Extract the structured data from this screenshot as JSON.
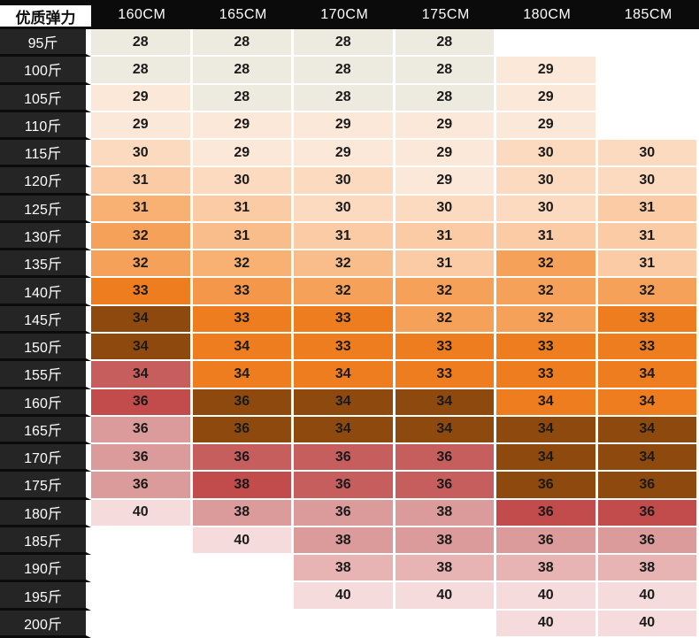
{
  "chart_data": {
    "type": "heatmap",
    "title": "优质弹力",
    "columns": [
      "160CM",
      "165CM",
      "170CM",
      "175CM",
      "180CM",
      "185CM"
    ],
    "rows": [
      "95斤",
      "100斤",
      "105斤",
      "110斤",
      "115斤",
      "120斤",
      "125斤",
      "130斤",
      "135斤",
      "140斤",
      "145斤",
      "150斤",
      "155斤",
      "160斤",
      "165斤",
      "170斤",
      "175斤",
      "180斤",
      "185斤",
      "190斤",
      "195斤",
      "200斤"
    ],
    "values": [
      [
        28,
        28,
        28,
        28,
        null,
        null
      ],
      [
        28,
        28,
        28,
        28,
        29,
        null
      ],
      [
        29,
        28,
        28,
        28,
        29,
        null
      ],
      [
        29,
        29,
        29,
        29,
        29,
        null
      ],
      [
        30,
        29,
        29,
        29,
        30,
        30
      ],
      [
        31,
        30,
        30,
        29,
        30,
        30
      ],
      [
        31,
        31,
        30,
        30,
        30,
        31
      ],
      [
        32,
        31,
        31,
        31,
        31,
        31
      ],
      [
        32,
        32,
        32,
        31,
        32,
        31
      ],
      [
        33,
        33,
        32,
        32,
        32,
        32
      ],
      [
        34,
        33,
        33,
        32,
        32,
        33
      ],
      [
        34,
        34,
        33,
        33,
        33,
        33
      ],
      [
        34,
        34,
        34,
        33,
        33,
        34
      ],
      [
        36,
        36,
        34,
        34,
        34,
        34
      ],
      [
        36,
        36,
        34,
        34,
        34,
        34
      ],
      [
        36,
        36,
        36,
        36,
        34,
        34
      ],
      [
        36,
        38,
        36,
        36,
        36,
        36
      ],
      [
        40,
        38,
        36,
        38,
        36,
        36
      ],
      [
        null,
        40,
        38,
        38,
        36,
        36
      ],
      [
        null,
        null,
        38,
        38,
        38,
        38
      ],
      [
        null,
        null,
        40,
        40,
        40,
        40
      ],
      [
        null,
        null,
        null,
        null,
        40,
        40
      ]
    ],
    "cell_colors": [
      [
        "b",
        "b",
        "b",
        "b",
        null,
        null
      ],
      [
        "b",
        "b",
        "b",
        "b",
        "p1",
        null
      ],
      [
        "p1",
        "b",
        "b",
        "b",
        "p1",
        null
      ],
      [
        "p1",
        "p1",
        "p1",
        "p1",
        "p1",
        null
      ],
      [
        "p2",
        "p1",
        "p1",
        "p1",
        "p2",
        "p2"
      ],
      [
        "p3",
        "p2",
        "p2",
        "p1",
        "p2",
        "p2"
      ],
      [
        "p5",
        "p3",
        "p2",
        "p2",
        "p2",
        "p3"
      ],
      [
        "p6",
        "p4",
        "p3",
        "p3",
        "p3",
        "p3"
      ],
      [
        "p6",
        "p5",
        "p4",
        "p3",
        "p6",
        "p3"
      ],
      [
        "o",
        "p7",
        "p6",
        "p6",
        "p6",
        "p6"
      ],
      [
        "br",
        "o",
        "o",
        "p6",
        "p6",
        "o"
      ],
      [
        "br",
        "o",
        "o",
        "o",
        "o",
        "o"
      ],
      [
        "r1",
        "o",
        "o",
        "o",
        "o",
        "o"
      ],
      [
        "r2",
        "br",
        "br",
        "br",
        "o",
        "o"
      ],
      [
        "r3",
        "br",
        "br",
        "br",
        "br",
        "br"
      ],
      [
        "r3",
        "r1",
        "r1",
        "r1",
        "br",
        "br"
      ],
      [
        "r3",
        "r2",
        "r1",
        "r1",
        "br",
        "br"
      ],
      [
        "r5",
        "r3",
        "r3",
        "r3",
        "r2",
        "r2"
      ],
      [
        null,
        "r5",
        "r3",
        "r3",
        "r3",
        "r3"
      ],
      [
        null,
        null,
        "r4",
        "r4",
        "r4",
        "r4"
      ],
      [
        null,
        null,
        "r5",
        "r5",
        "r5",
        "r5"
      ],
      [
        null,
        null,
        null,
        null,
        "r5",
        "r5"
      ]
    ],
    "palette": {
      "b": "#EDEAE0",
      "p1": "#FCE8D9",
      "p2": "#FBDAC0",
      "p3": "#FACBA4",
      "p4": "#F9BD8B",
      "p5": "#F8B073",
      "p6": "#F6A159",
      "p7": "#F4974A",
      "o": "#EE7D1F",
      "br": "#8E4A0E",
      "r1": "#C75E5E",
      "r2": "#C24B4B",
      "r3": "#DC9B9B",
      "r4": "#E7B3B3",
      "r5": "#F5DBDB"
    },
    "ui_colors": {
      "header_bg": "#0B0B0B",
      "header_text": "#FFFFFF",
      "row_label_bg": "#252525",
      "row_label_text": "#FFFFFF",
      "corner_bg": "#FFFFFF",
      "corner_text": "#111111",
      "cell_text": "#1A1A1A",
      "grid_line": "#FFFFFF",
      "empty_cell": "#FFFFFF"
    }
  }
}
